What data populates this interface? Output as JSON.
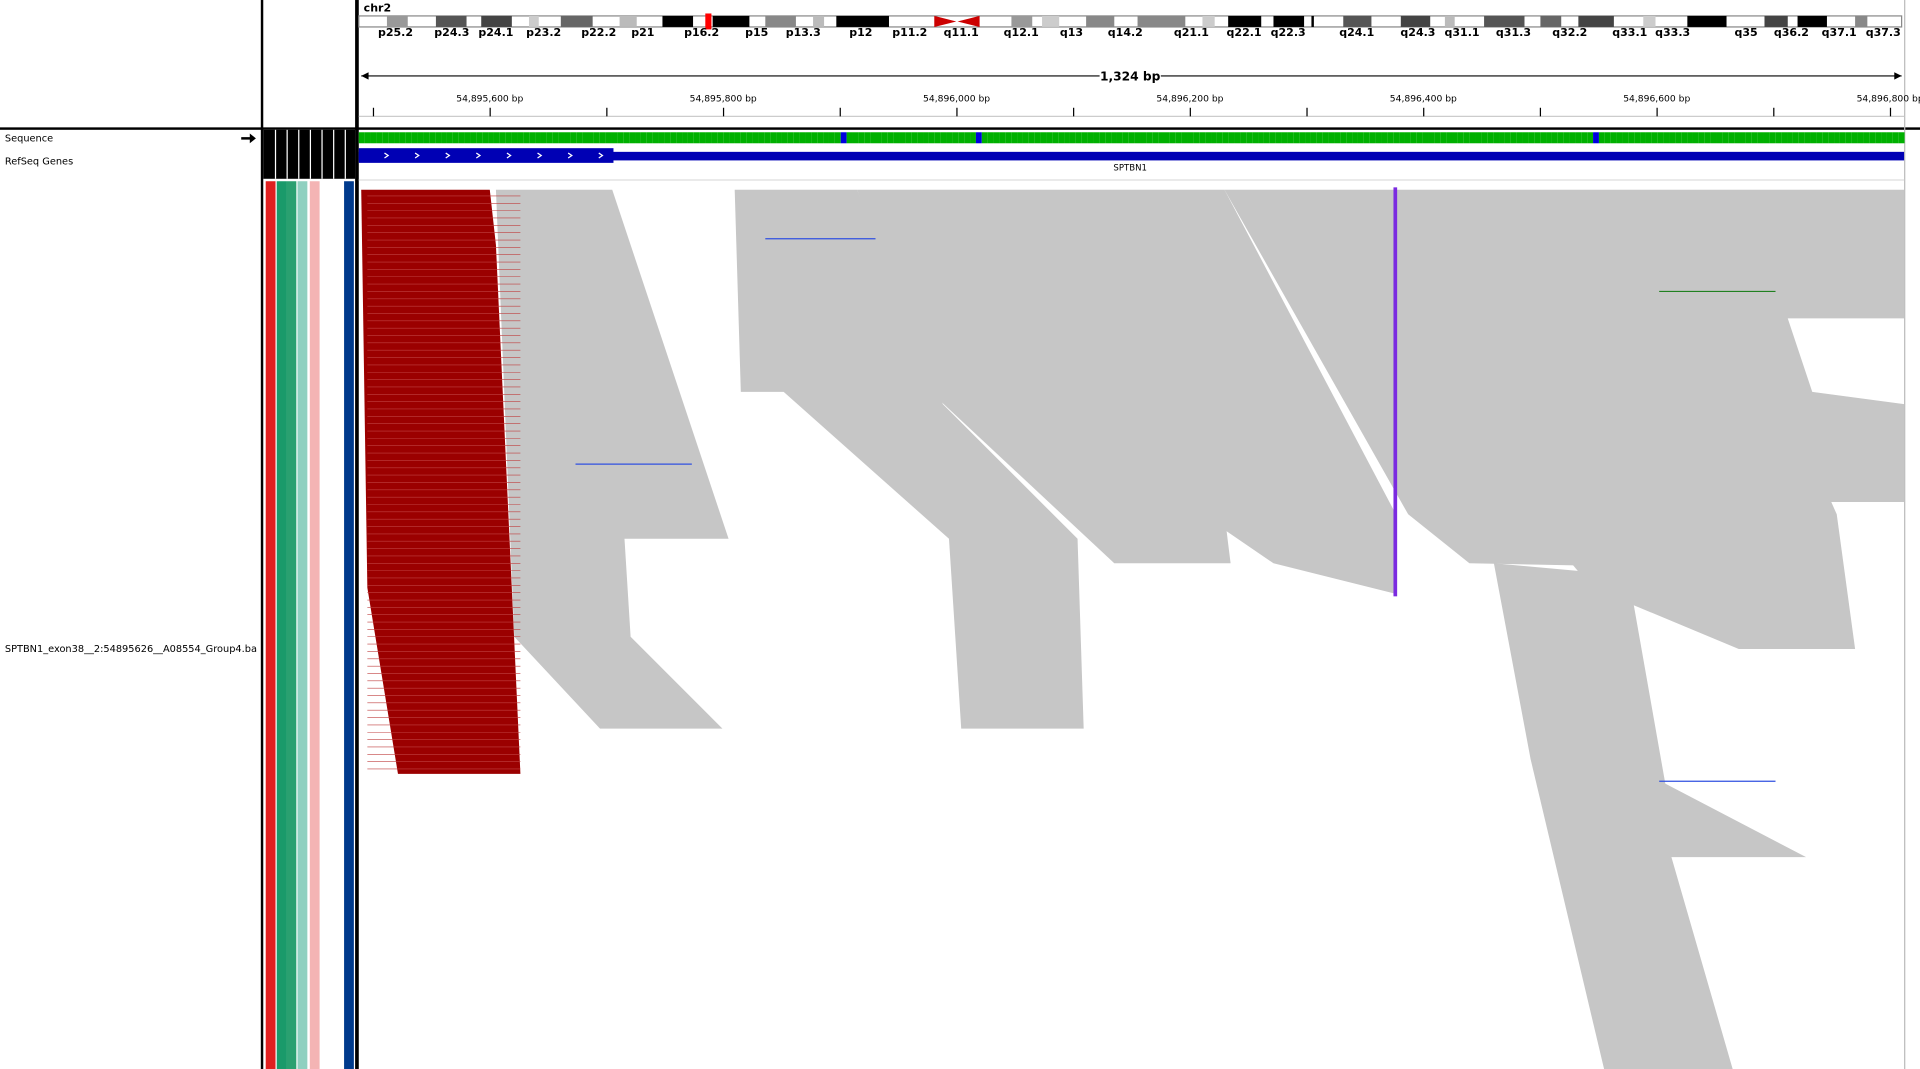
{
  "header": {
    "chromosome": "chr2",
    "cytobands": [
      "p25.2",
      "p24.3",
      "p24.1",
      "p23.2",
      "p22.2",
      "p21",
      "p16.2",
      "p15",
      "p13.3",
      "p12",
      "p11.2",
      "q11.1",
      "q12.1",
      "q13",
      "q14.2",
      "q21.1",
      "q22.1",
      "q22.3",
      "q24.1",
      "q24.3",
      "q31.1",
      "q31.3",
      "q32.2",
      "q33.1",
      "q33.3",
      "q35",
      "q36.2",
      "q37.1",
      "q37.3"
    ],
    "span": "1,324 bp",
    "ruler_ticks": [
      "54,895,600 bp",
      "54,895,800 bp",
      "54,896,000 bp",
      "54,896,200 bp",
      "54,896,400 bp",
      "54,896,600 bp",
      "54,896,800 bp"
    ]
  },
  "tracks": {
    "sequence": "Sequence",
    "refseq": "RefSeq Genes",
    "gene": "SPTBN1",
    "alignment": "SPTBN1_exon38__2:54895626__A08554_Group4.ba"
  }
}
